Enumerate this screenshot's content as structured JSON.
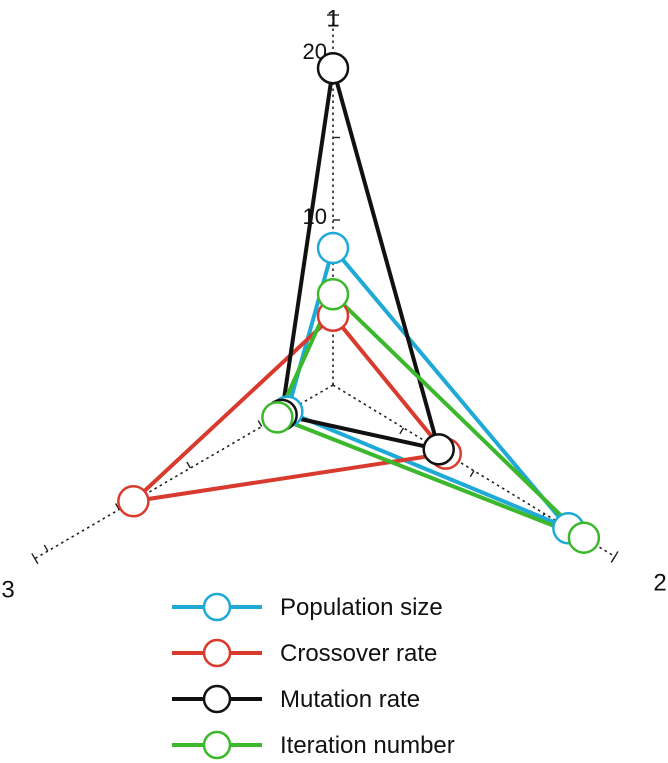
{
  "chart_data": {
    "type": "radar",
    "title": "",
    "axes": [
      {
        "name": "1",
        "max": 21
      },
      {
        "name": "2",
        "max": 21
      },
      {
        "name": "3",
        "max": 21
      }
    ],
    "tick_labels": [
      "10",
      "20"
    ],
    "tick_values": [
      10,
      20
    ],
    "minor_ticks": [
      5,
      10,
      15,
      20
    ],
    "series": [
      {
        "name": "Population size",
        "color": "#1fa9d6",
        "values": [
          8.3,
          16.7,
          3.2
        ]
      },
      {
        "name": "Crossover rate",
        "color": "#d93a2e",
        "values": [
          4.2,
          8.0,
          14.0
        ]
      },
      {
        "name": "Mutation rate",
        "color": "#111111",
        "values": [
          19.2,
          7.5,
          3.6
        ]
      },
      {
        "name": "Iteration number",
        "color": "#3cb82c",
        "values": [
          5.5,
          17.8,
          3.9
        ]
      }
    ],
    "legend_position": "bottom"
  }
}
